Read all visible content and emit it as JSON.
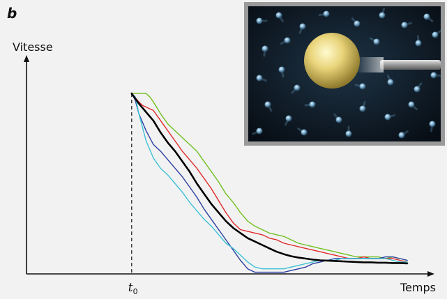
{
  "panel_label": "b",
  "inset": {
    "icon": "particle-collision-illustration"
  },
  "chart_data": {
    "type": "line",
    "ylabel": "Vitesse",
    "xlabel": "Temps",
    "x_ticks": [
      {
        "label": "t",
        "subscript": "0",
        "x": 0
      }
    ],
    "t0_marker": {
      "x": 0,
      "style": "dashed"
    },
    "xlim": [
      -29,
      81
    ],
    "ylim": [
      -3,
      58
    ],
    "colors": {
      "mean": "#000000",
      "green": "#6fbf1f",
      "red": "#e02a2a",
      "blue": "#2a3fa0",
      "cyan": "#3cc1d6"
    },
    "series": [
      {
        "color": "green",
        "width": 1.4,
        "x": [
          0,
          2,
          4,
          5,
          6,
          8,
          10,
          12,
          14,
          16,
          18,
          20,
          22,
          24,
          26,
          28,
          30,
          32,
          34,
          36,
          38,
          40,
          42,
          44,
          46,
          48,
          50,
          52,
          54,
          56,
          58,
          60,
          62,
          64,
          66,
          68,
          70,
          72,
          74,
          76
        ],
        "y": [
          50,
          50,
          50,
          49,
          47.5,
          44,
          41,
          39,
          37,
          35,
          33,
          30,
          27,
          24,
          20.5,
          18,
          15,
          12.5,
          11,
          10,
          9,
          8.5,
          8,
          7,
          6,
          5.5,
          5,
          4.5,
          4,
          3.5,
          3,
          2.5,
          2,
          2,
          2,
          2,
          1.5,
          2,
          1.5,
          1
        ]
      },
      {
        "color": "red",
        "width": 1.4,
        "x": [
          0,
          2,
          3,
          4,
          6,
          8,
          10,
          12,
          14,
          16,
          18,
          20,
          22,
          24,
          26,
          28,
          30,
          32,
          34,
          36,
          38,
          40,
          42,
          44,
          46,
          48,
          50,
          52,
          54,
          56,
          58,
          60,
          62,
          64,
          66,
          68,
          70,
          72,
          74,
          76
        ],
        "y": [
          50,
          47.5,
          46.5,
          46,
          45,
          42,
          39,
          36,
          33,
          30.5,
          28,
          25,
          22,
          18.5,
          15,
          12,
          10,
          9.5,
          9,
          8.5,
          7.5,
          7,
          6,
          5.5,
          5,
          4.5,
          4,
          3.5,
          3,
          2.5,
          2,
          1.5,
          1.5,
          2,
          1.5,
          1.5,
          1.5,
          1.5,
          1,
          0.5
        ]
      },
      {
        "color": "blue",
        "width": 1.4,
        "x": [
          0,
          1,
          2,
          4,
          6,
          8,
          10,
          12,
          14,
          16,
          18,
          20,
          22,
          24,
          26,
          28,
          30,
          32,
          34,
          36,
          38,
          40,
          42,
          44,
          46,
          48,
          50,
          52,
          54,
          56,
          58,
          60,
          62,
          64,
          66,
          68,
          70,
          72,
          74,
          76
        ],
        "y": [
          50,
          48,
          44,
          39,
          35,
          33,
          30.5,
          28,
          25.5,
          22.5,
          19.5,
          16,
          13,
          10,
          7,
          4,
          1,
          -1.5,
          -2.5,
          -2.5,
          -2.5,
          -2.5,
          -2.5,
          -2,
          -1.5,
          -1,
          0,
          0.5,
          1,
          1.5,
          1.5,
          1.5,
          1.5,
          1.5,
          1.5,
          1.5,
          2,
          2,
          1.5,
          1
        ]
      },
      {
        "color": "cyan",
        "width": 1.4,
        "x": [
          0,
          1,
          2,
          4,
          6,
          8,
          10,
          12,
          14,
          16,
          18,
          20,
          22,
          24,
          26,
          28,
          30,
          32,
          34,
          36,
          38,
          40,
          42,
          44,
          46,
          48,
          50,
          52,
          54,
          56,
          58,
          60,
          62,
          64,
          66,
          68,
          70,
          72,
          74,
          76
        ],
        "y": [
          50,
          49,
          44,
          36,
          31,
          28,
          26,
          23.5,
          21,
          18,
          15.5,
          13,
          11,
          8.5,
          6,
          4.5,
          2.5,
          0.5,
          -1,
          -1.5,
          -1.5,
          -1.5,
          -1.5,
          -1,
          -0.5,
          0,
          0.5,
          1,
          1,
          1,
          1.5,
          1.5,
          1.5,
          1.5,
          1.5,
          1.5,
          1.5,
          1,
          0.5,
          0.5
        ]
      },
      {
        "color": "mean",
        "width": 2.6,
        "x": [
          0,
          2,
          4,
          6,
          8,
          10,
          12,
          14,
          16,
          18,
          20,
          22,
          24,
          26,
          28,
          30,
          32,
          34,
          36,
          38,
          40,
          42,
          44,
          46,
          48,
          50,
          52,
          54,
          56,
          58,
          60,
          62,
          64,
          66,
          68,
          70,
          72,
          74,
          76
        ],
        "y": [
          50,
          47,
          44.5,
          42,
          38.5,
          35.5,
          33,
          30,
          27,
          23.5,
          20.5,
          17.5,
          15,
          12.5,
          10.5,
          9,
          7.5,
          6.5,
          5.5,
          4.5,
          3.5,
          2.8,
          2.2,
          1.8,
          1.5,
          1.2,
          1,
          0.9,
          0.8,
          0.7,
          0.6,
          0.5,
          0.4,
          0.4,
          0.3,
          0.3,
          0.2,
          0.2,
          0.1
        ]
      }
    ]
  }
}
